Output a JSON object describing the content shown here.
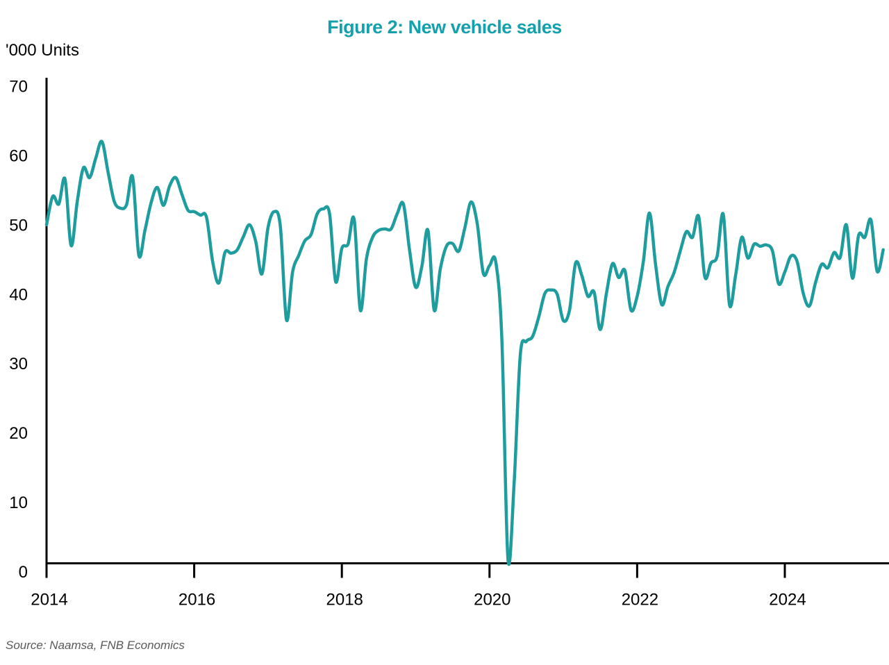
{
  "figure": {
    "title": "Figure 2: New vehicle sales",
    "unit_label": "'000 Units",
    "source": "Source: Naamsa, FNB Economics"
  },
  "colors": {
    "title": "#14A0AC",
    "line": "#1F9D9E",
    "axis": "#000000",
    "tick_text": "#000000",
    "source_text": "#595959",
    "background": "#FFFFFF"
  },
  "chart_data": {
    "type": "line",
    "title": "Figure 2: New vehicle sales",
    "xlabel": "",
    "ylabel": "'000 Units",
    "ylim": [
      0,
      70
    ],
    "y_ticks": [
      0,
      10,
      20,
      30,
      40,
      50,
      60,
      70
    ],
    "x_ticks": [
      "2014",
      "2016",
      "2018",
      "2020",
      "2022",
      "2024"
    ],
    "x_tick_years": [
      2014,
      2016,
      2018,
      2020,
      2022,
      2024
    ],
    "grid": false,
    "legend": "none",
    "series": [
      {
        "name": "New vehicle sales ('000 units)",
        "start": "2014-01",
        "end": "2025-05",
        "frequency": "monthly",
        "values": [
          48.8,
          52.9,
          51.8,
          55.4,
          45.8,
          52.2,
          57.0,
          55.6,
          58.4,
          60.8,
          56.4,
          52.2,
          51.2,
          51.7,
          55.7,
          44.4,
          48.0,
          52.0,
          54.2,
          51.6,
          54.4,
          55.6,
          53.2,
          50.9,
          50.7,
          50.2,
          49.9,
          43.5,
          40.4,
          44.8,
          44.7,
          45.2,
          47.1,
          48.8,
          46.4,
          41.7,
          48.4,
          50.7,
          48.6,
          35.1,
          42.0,
          44.4,
          46.5,
          47.4,
          50.4,
          51.1,
          50.4,
          40.6,
          45.4,
          46.0,
          49.6,
          36.5,
          43.9,
          47.0,
          48.0,
          48.2,
          48.2,
          50.4,
          51.8,
          45.2,
          39.8,
          42.8,
          48.0,
          36.5,
          42.4,
          45.7,
          46.1,
          45.0,
          48.4,
          52.1,
          49.0,
          41.8,
          42.9,
          43.5,
          32.5,
          0.6,
          11.5,
          30.0,
          32.0,
          32.7,
          35.5,
          38.9,
          39.4,
          38.8,
          35.0,
          36.5,
          43.3,
          41.5,
          38.5,
          39.1,
          33.7,
          38.9,
          43.2,
          41.2,
          42.2,
          36.5,
          38.5,
          43.5,
          50.5,
          43.0,
          37.3,
          39.9,
          41.9,
          45.0,
          47.8,
          47.0,
          50.0,
          41.3,
          43.3,
          44.3,
          50.3,
          37.3,
          41.5,
          47.0,
          44.0,
          46.0,
          45.7,
          45.9,
          45.0,
          40.3,
          42.0,
          44.3,
          43.5,
          38.9,
          37.1,
          40.5,
          43.1,
          42.6,
          44.8,
          44.1,
          48.8,
          41.1,
          47.3,
          47.0,
          49.5,
          42.1,
          45.2
        ]
      }
    ]
  }
}
